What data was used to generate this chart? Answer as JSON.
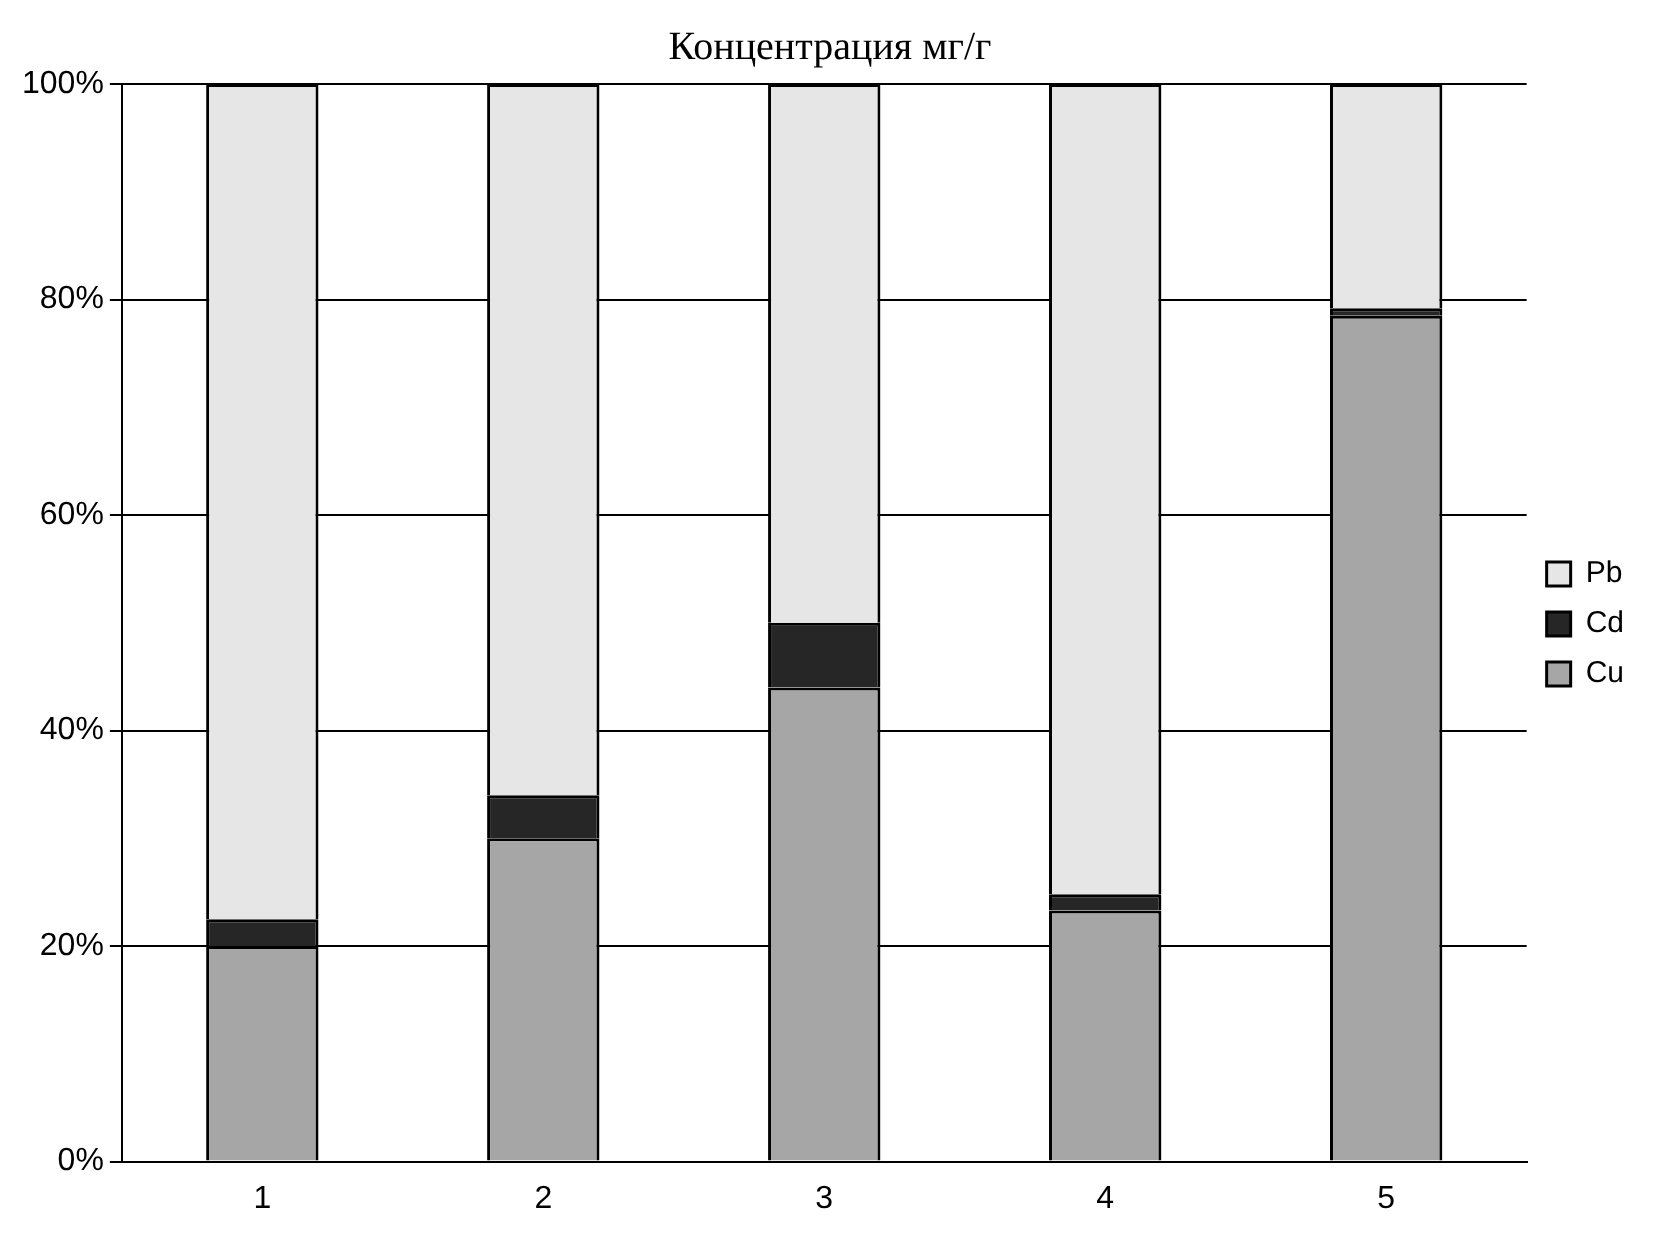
{
  "chart_data": {
    "type": "bar",
    "title": "Концентрация мг/г",
    "stacked": true,
    "categories": [
      "1",
      "2",
      "3",
      "4",
      "5"
    ],
    "series": [
      {
        "name": "Cu",
        "color": "#a6a6a6",
        "values": [
          20,
          30,
          44,
          23.3,
          78.5
        ]
      },
      {
        "name": "Cd",
        "color": "#262626",
        "values": [
          2.5,
          4,
          6,
          1.5,
          0.7
        ]
      },
      {
        "name": "Pb",
        "color": "#e6e6e6",
        "values": [
          77.5,
          66,
          50,
          75.2,
          20.8
        ]
      }
    ],
    "ylim": [
      0,
      100
    ],
    "yticks": [
      {
        "value": 0,
        "label": "0%"
      },
      {
        "value": 20,
        "label": "20%"
      },
      {
        "value": 40,
        "label": "40%"
      },
      {
        "value": 60,
        "label": "60%"
      },
      {
        "value": 80,
        "label": "80%"
      },
      {
        "value": 100,
        "label": "100%"
      }
    ],
    "grid": "y",
    "legend": "right"
  }
}
